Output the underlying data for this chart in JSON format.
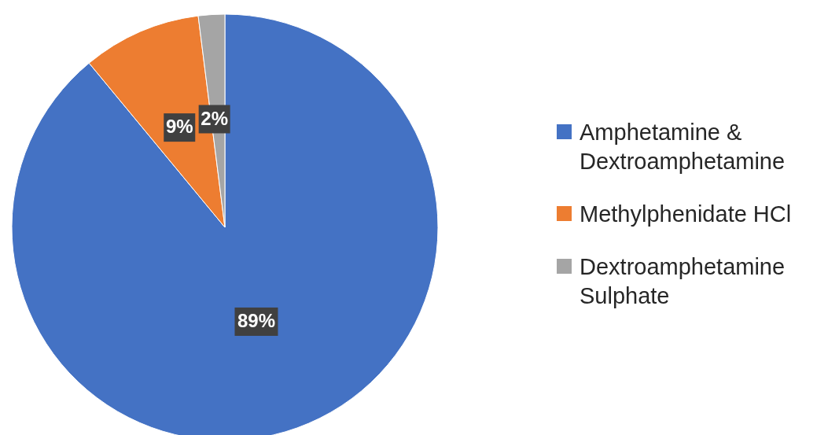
{
  "chart_data": {
    "type": "pie",
    "categories": [
      "Amphetamine & Dextroamphetamine",
      "Methylphenidate HCl",
      "Dextroamphetamine Sulphate"
    ],
    "values": [
      89,
      9,
      2
    ],
    "colors": [
      "#4472c4",
      "#ed7d31",
      "#a5a5a5"
    ],
    "value_labels": [
      "89%",
      "9%",
      "2%"
    ],
    "legend": "right"
  }
}
